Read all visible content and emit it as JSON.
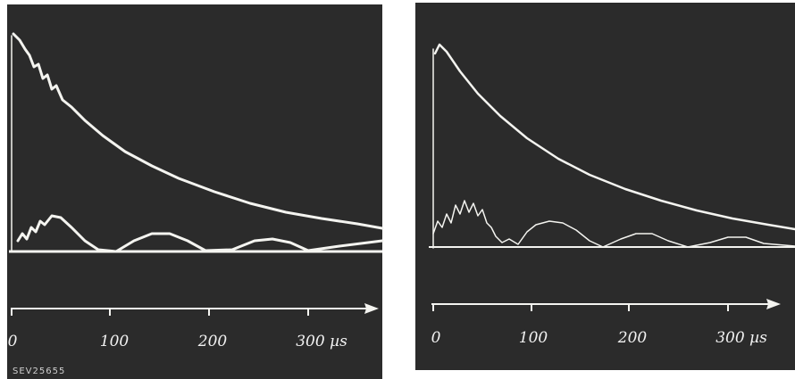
{
  "panels": [
    {
      "tick_labels": [
        "0",
        "100",
        "200",
        "300 µs"
      ],
      "code": "SEV25655"
    },
    {
      "tick_labels": [
        "0",
        "100",
        "200",
        "300 µs"
      ]
    }
  ]
}
